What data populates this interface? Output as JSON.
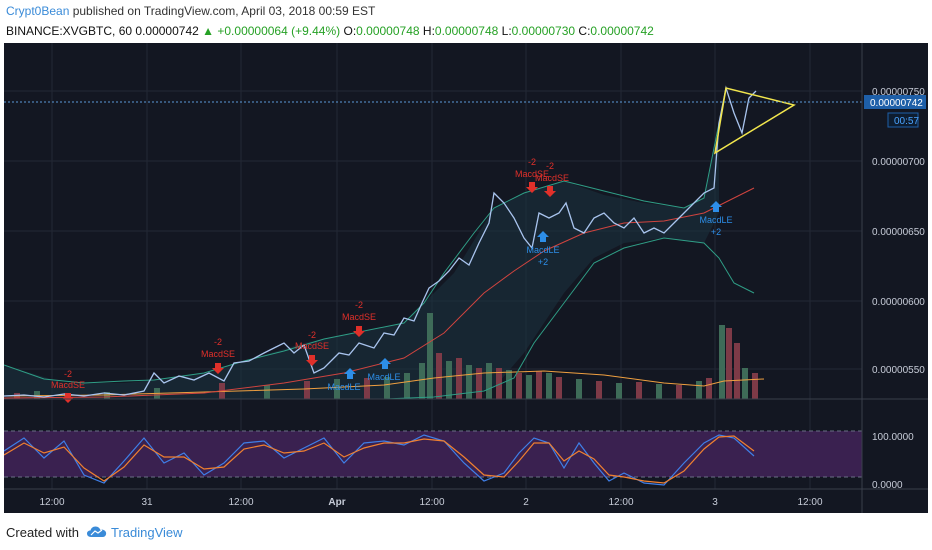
{
  "header": {
    "author": "Crypt0Bean",
    "published_text": " published on TradingView.com, April 03, 2018 00:59 EST",
    "symbol": "BINANCE:XVGBTC, 60",
    "last": "0.00000742",
    "change": "+0.00000064 (+9.44%)",
    "o_label": "O:",
    "o_value": "0.00000748",
    "h_label": "H:",
    "h_value": "0.00000748",
    "l_label": "L:",
    "l_value": "0.00000730",
    "c_label": "C:",
    "c_value": "0.00000742"
  },
  "price_axis": {
    "labels": [
      "0.00000750",
      "0.00000700",
      "0.00000650",
      "0.00000600",
      "0.00000550"
    ],
    "current_price": "0.00000742",
    "countdown": "00:57"
  },
  "stoch_axis": {
    "labels": [
      "100.0000",
      "0.0000"
    ]
  },
  "time_axis": {
    "labels": [
      "12:00",
      "31",
      "12:00",
      "Apr",
      "12:00",
      "2",
      "12:00",
      "3",
      "12:00"
    ]
  },
  "annotations": {
    "short": [
      {
        "n": "-2",
        "label": "MacdSE"
      },
      {
        "n": "-2",
        "label": "MacdSE"
      },
      {
        "n": "-2",
        "label": "MacdSE"
      },
      {
        "n": "-2",
        "label": "MacdSE"
      },
      {
        "n": "-2",
        "label": "MacdSE"
      },
      {
        "n": "-2",
        "label": "MacdSE"
      }
    ],
    "long": [
      {
        "label": "MacdLE",
        "n": ""
      },
      {
        "label": "MacdLE",
        "n": ""
      },
      {
        "label": "MacdLE",
        "n": "+2"
      },
      {
        "label": "MacdLE",
        "n": "+2"
      }
    ]
  },
  "footer": {
    "created_with": "Created with",
    "brand": "TradingView"
  },
  "colors": {
    "background": "#131722",
    "price_line": "#a9c4ee",
    "bollinger": "#2f9e86",
    "sma": "#d0443f",
    "volume_up": "#3e6b58",
    "volume_down": "#7d3a47",
    "volume_ma": "#f0a040",
    "triangle": "#f2e64d",
    "stoch_k": "#3f7fe8",
    "stoch_d": "#f08030",
    "stoch_bg": "#3a2150",
    "sell": "#e0302a",
    "buy": "#2d8ee8"
  }
}
